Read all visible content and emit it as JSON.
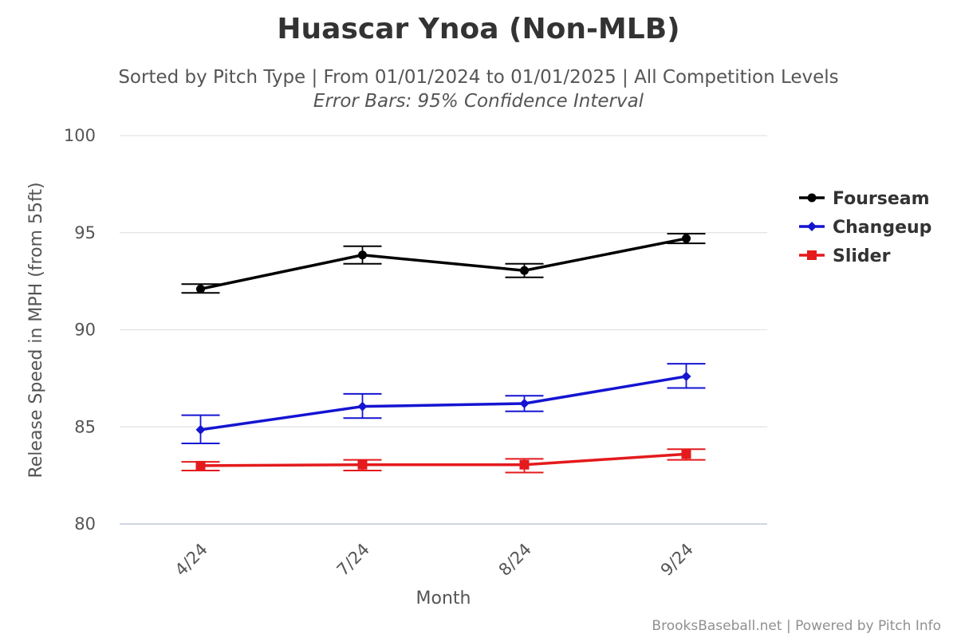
{
  "chart_data": {
    "type": "line",
    "title": "Huascar Ynoa (Non-MLB)",
    "subtitle": "Sorted by Pitch Type | From 01/01/2024 to 01/01/2025 | All Competition Levels",
    "subtitle2": "Error Bars: 95% Confidence Interval",
    "xlabel": "Month",
    "ylabel": "Release Speed in MPH (from 55ft)",
    "categories": [
      "4/24",
      "7/24",
      "8/24",
      "9/24"
    ],
    "ylim": [
      80,
      100
    ],
    "yticks": [
      80,
      85,
      90,
      95,
      100
    ],
    "grid": true,
    "legend_position": "right",
    "series": [
      {
        "name": "Fourseam",
        "color": "#000000",
        "marker": "circle",
        "values": [
          92.1,
          93.85,
          93.05,
          94.7
        ],
        "err_low": [
          91.9,
          93.4,
          92.7,
          94.45
        ],
        "err_high": [
          92.35,
          94.3,
          93.4,
          94.95
        ]
      },
      {
        "name": "Changeup",
        "color": "#1414d2",
        "marker": "diamond",
        "values": [
          84.85,
          86.05,
          86.2,
          87.6
        ],
        "err_low": [
          84.15,
          85.45,
          85.8,
          87.0
        ],
        "err_high": [
          85.6,
          86.7,
          86.6,
          88.25
        ]
      },
      {
        "name": "Slider",
        "color": "#e41a1c",
        "marker": "square",
        "values": [
          83.0,
          83.05,
          83.05,
          83.6
        ],
        "err_low": [
          82.75,
          82.75,
          82.65,
          83.3
        ],
        "err_high": [
          83.2,
          83.3,
          83.35,
          83.85
        ]
      }
    ]
  },
  "credits": "BrooksBaseball.net | Powered by Pitch Info"
}
